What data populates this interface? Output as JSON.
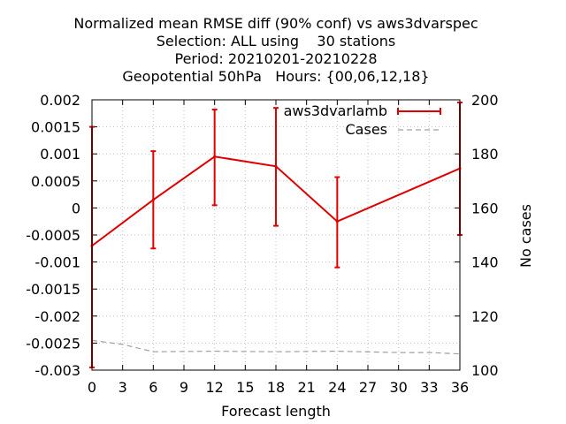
{
  "chart_data": {
    "type": "line",
    "title_lines": [
      "Normalized mean RMSE diff (90% conf) vs aws3dvarspec",
      "Selection: ALL using    30 stations",
      "Period: 20210201-20210228",
      "Geopotential 50hPa   Hours: {00,06,12,18}"
    ],
    "xlabel": "Forecast length",
    "ylabel": "",
    "y2label": "No cases",
    "xlim": [
      0,
      36
    ],
    "ylim": [
      -0.003,
      0.002
    ],
    "y2lim": [
      100,
      200
    ],
    "x_ticks": [
      "0",
      "3",
      "6",
      "9",
      "12",
      "15",
      "18",
      "21",
      "24",
      "27",
      "30",
      "33",
      "36"
    ],
    "y_ticks": [
      "0.002",
      "0.0015",
      "0.001",
      "0.0005",
      "0",
      "-0.0005",
      "-0.001",
      "-0.0015",
      "-0.002",
      "-0.0025",
      "-0.003"
    ],
    "y2_ticks": [
      "200",
      "180",
      "160",
      "140",
      "120",
      "100"
    ],
    "grid": true,
    "legend_position": "top-right",
    "series": [
      {
        "name": "aws3dvarlamb",
        "axis": "y",
        "style": "line with error bars",
        "color": "#e00000",
        "x": [
          0,
          6,
          12,
          18,
          24,
          36
        ],
        "y": [
          -0.0007,
          0.00015,
          0.00095,
          0.00077,
          -0.00025,
          0.00073
        ],
        "err_low": [
          -0.00295,
          -0.00075,
          5e-05,
          -0.00033,
          -0.0011,
          -0.0005
        ],
        "err_high": [
          0.0015,
          0.00105,
          0.00182,
          0.00185,
          0.00057,
          0.00195
        ]
      },
      {
        "name": "Cases",
        "axis": "y2",
        "style": "dashed",
        "color": "#a0a0a0",
        "x": [
          0,
          3,
          6,
          12,
          18,
          24,
          30,
          33,
          36
        ],
        "y": [
          111,
          109.5,
          106.8,
          107,
          106.8,
          107,
          106.5,
          106.5,
          106
        ]
      }
    ]
  }
}
